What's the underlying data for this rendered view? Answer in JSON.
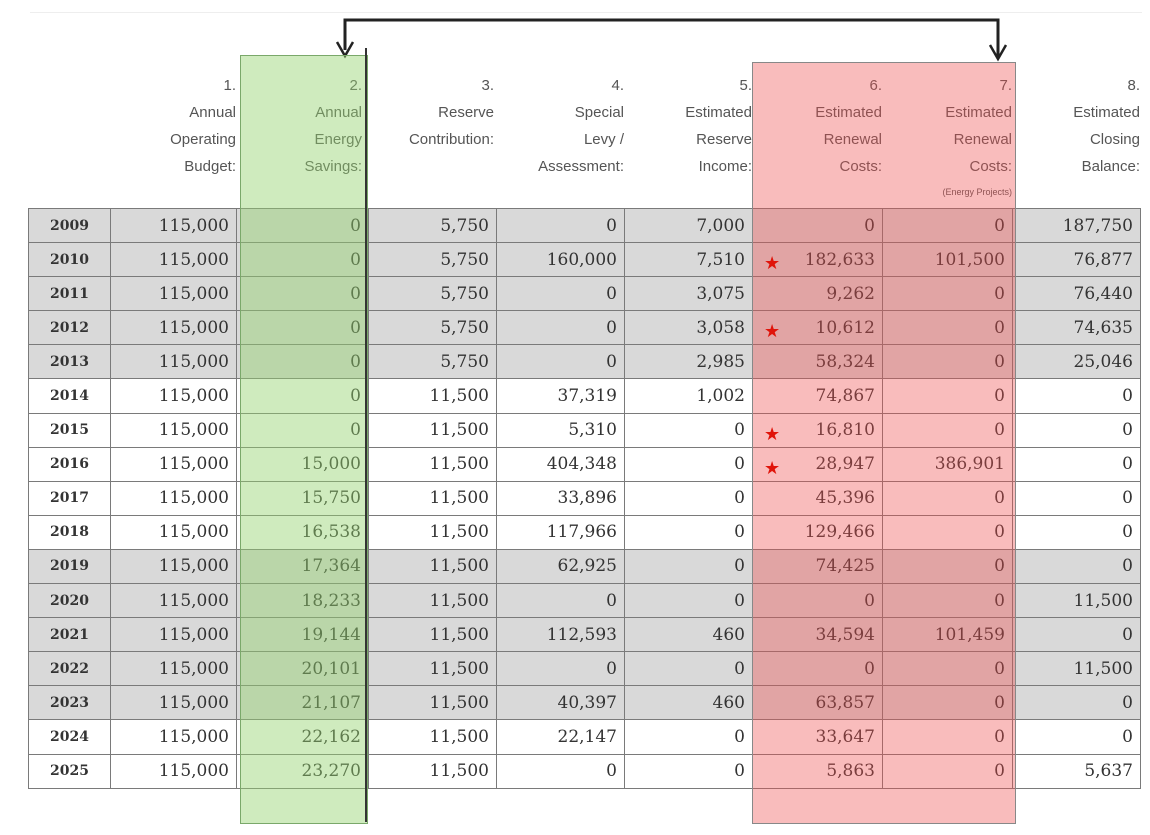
{
  "columns": [
    {
      "number": "1.",
      "label": [
        "Annual",
        "Operating",
        "Budget:"
      ],
      "note": ""
    },
    {
      "number": "2.",
      "label": [
        "Annual",
        "Energy",
        "Savings:"
      ],
      "note": ""
    },
    {
      "number": "3.",
      "label": [
        "Reserve",
        "Contribution:"
      ],
      "note": ""
    },
    {
      "number": "4.",
      "label": [
        "Special",
        "Levy /",
        "Assessment:"
      ],
      "note": ""
    },
    {
      "number": "5.",
      "label": [
        "Estimated",
        "Reserve",
        "Income:"
      ],
      "note": ""
    },
    {
      "number": "6.",
      "label": [
        "Estimated",
        "Renewal",
        "Costs:"
      ],
      "note": ""
    },
    {
      "number": "7.",
      "label": [
        "Estimated",
        "Renewal",
        "Costs:"
      ],
      "note": "(Energy Projects)"
    },
    {
      "number": "8.",
      "label": [
        "Estimated",
        "Closing",
        "Balance:"
      ],
      "note": ""
    }
  ],
  "rows": [
    {
      "year": "2009",
      "shade": "grey",
      "star": false,
      "values": [
        "115,000",
        "0",
        "5,750",
        "0",
        "7,000",
        "0",
        "0",
        "187,750"
      ]
    },
    {
      "year": "2010",
      "shade": "grey",
      "star": true,
      "values": [
        "115,000",
        "0",
        "5,750",
        "160,000",
        "7,510",
        "182,633",
        "101,500",
        "76,877"
      ]
    },
    {
      "year": "2011",
      "shade": "grey",
      "star": false,
      "values": [
        "115,000",
        "0",
        "5,750",
        "0",
        "3,075",
        "9,262",
        "0",
        "76,440"
      ]
    },
    {
      "year": "2012",
      "shade": "grey",
      "star": true,
      "values": [
        "115,000",
        "0",
        "5,750",
        "0",
        "3,058",
        "10,612",
        "0",
        "74,635"
      ]
    },
    {
      "year": "2013",
      "shade": "grey",
      "star": false,
      "values": [
        "115,000",
        "0",
        "5,750",
        "0",
        "2,985",
        "58,324",
        "0",
        "25,046"
      ]
    },
    {
      "year": "2014",
      "shade": "white",
      "star": false,
      "values": [
        "115,000",
        "0",
        "11,500",
        "37,319",
        "1,002",
        "74,867",
        "0",
        "0"
      ]
    },
    {
      "year": "2015",
      "shade": "white",
      "star": true,
      "values": [
        "115,000",
        "0",
        "11,500",
        "5,310",
        "0",
        "16,810",
        "0",
        "0"
      ]
    },
    {
      "year": "2016",
      "shade": "white",
      "star": true,
      "values": [
        "115,000",
        "15,000",
        "11,500",
        "404,348",
        "0",
        "28,947",
        "386,901",
        "0"
      ]
    },
    {
      "year": "2017",
      "shade": "white",
      "star": false,
      "values": [
        "115,000",
        "15,750",
        "11,500",
        "33,896",
        "0",
        "45,396",
        "0",
        "0"
      ]
    },
    {
      "year": "2018",
      "shade": "white",
      "star": false,
      "values": [
        "115,000",
        "16,538",
        "11,500",
        "117,966",
        "0",
        "129,466",
        "0",
        "0"
      ]
    },
    {
      "year": "2019",
      "shade": "grey",
      "star": false,
      "values": [
        "115,000",
        "17,364",
        "11,500",
        "62,925",
        "0",
        "74,425",
        "0",
        "0"
      ]
    },
    {
      "year": "2020",
      "shade": "grey",
      "star": false,
      "values": [
        "115,000",
        "18,233",
        "11,500",
        "0",
        "0",
        "0",
        "0",
        "11,500"
      ]
    },
    {
      "year": "2021",
      "shade": "grey",
      "star": false,
      "values": [
        "115,000",
        "19,144",
        "11,500",
        "112,593",
        "460",
        "34,594",
        "101,459",
        "0"
      ]
    },
    {
      "year": "2022",
      "shade": "grey",
      "star": false,
      "values": [
        "115,000",
        "20,101",
        "11,500",
        "0",
        "0",
        "0",
        "0",
        "11,500"
      ]
    },
    {
      "year": "2023",
      "shade": "grey",
      "star": false,
      "values": [
        "115,000",
        "21,107",
        "11,500",
        "40,397",
        "460",
        "63,857",
        "0",
        "0"
      ]
    },
    {
      "year": "2024",
      "shade": "white",
      "star": false,
      "values": [
        "115,000",
        "22,162",
        "11,500",
        "22,147",
        "0",
        "33,647",
        "0",
        "0"
      ]
    },
    {
      "year": "2025",
      "shade": "white",
      "star": false,
      "values": [
        "115,000",
        "23,270",
        "11,500",
        "0",
        "0",
        "5,863",
        "0",
        "5,637"
      ]
    }
  ],
  "colors": {
    "highlight_green": "#95d26e",
    "highlight_red": "#f05050",
    "row_grey": "#d9d9d9",
    "star": "#e0140a"
  }
}
